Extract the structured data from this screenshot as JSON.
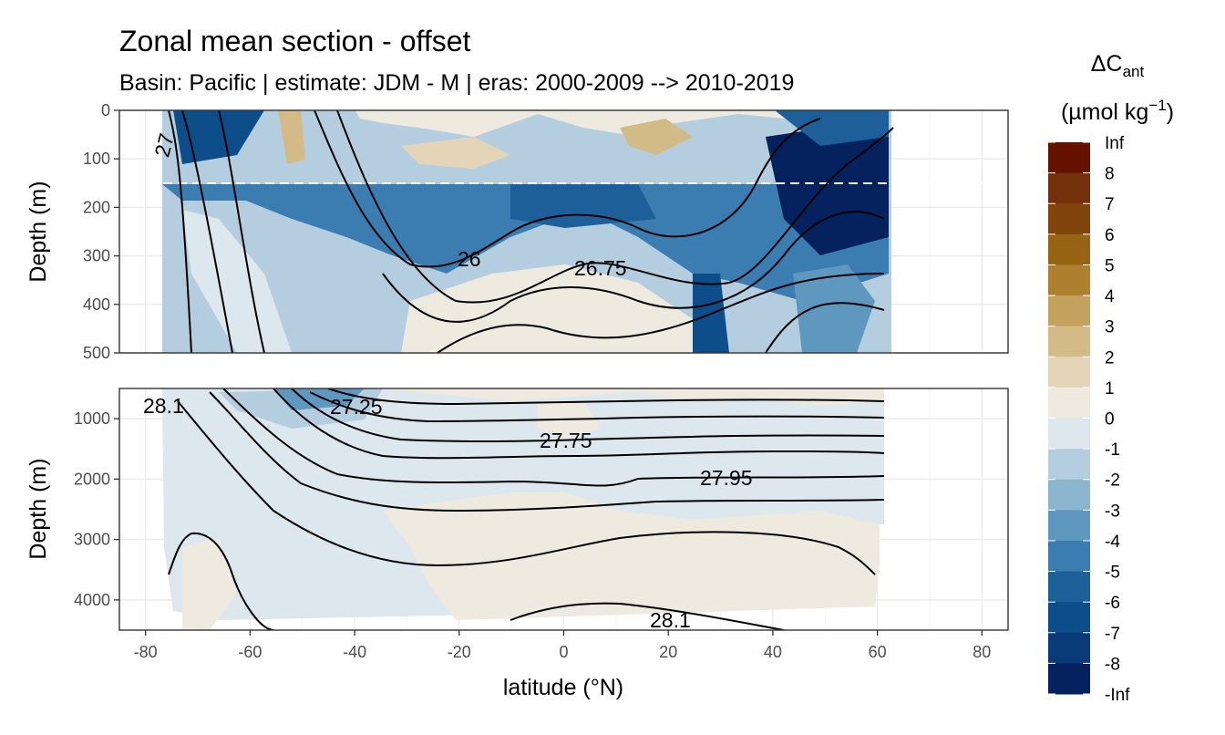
{
  "chart_data": {
    "type": "heatmap",
    "title": "Zonal mean section - offset",
    "subtitle": "Basin: Pacific | estimate: JDM - M | eras: 2000-2009 --> 2010-2019",
    "xlabel": "latitude (°N)",
    "ylabel": "Depth (m)",
    "xlim": [
      -85,
      85
    ],
    "x_ticks": [
      "-80",
      "-60",
      "-40",
      "-20",
      "0",
      "20",
      "40",
      "60",
      "80"
    ],
    "panels": [
      {
        "name": "upper",
        "ylim": [
          500,
          0
        ],
        "y_ticks": [
          "0",
          "100",
          "200",
          "300",
          "400",
          "500"
        ],
        "reference_depth": 150,
        "contour_labels": [
          "26",
          "26.75",
          "27"
        ]
      },
      {
        "name": "lower",
        "ylim": [
          4500,
          500
        ],
        "y_ticks": [
          "1000",
          "2000",
          "3000",
          "4000"
        ],
        "contour_labels": [
          "28.1",
          "27.25",
          "27.75",
          "27.95",
          "28.1"
        ]
      }
    ],
    "legend": {
      "title_main": "ΔC",
      "title_sub": "ant",
      "unit_text": "(µmol kg",
      "unit_sup": "−1",
      "unit_close": ")",
      "labels": [
        "Inf",
        "8",
        "7",
        "6",
        "5",
        "4",
        "3",
        "2",
        "1",
        "0",
        "-1",
        "-2",
        "-3",
        "-4",
        "-5",
        "-6",
        "-7",
        "-8",
        "-Inf"
      ],
      "colors": [
        "#651300",
        "#74300a",
        "#81440c",
        "#966413",
        "#ad8030",
        "#c3a25d",
        "#d3bb88",
        "#e4d5b8",
        "#eeeadf",
        "#dde7ee",
        "#b4cee0",
        "#8cb5d0",
        "#5f98be",
        "#3b7db0",
        "#1d6099",
        "#0c4d8a",
        "#0a3b78",
        "#05225e"
      ]
    }
  }
}
